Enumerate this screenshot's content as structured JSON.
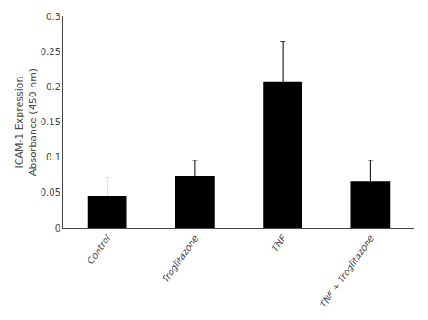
{
  "chart_data": {
    "type": "bar",
    "categories": [
      "Control",
      "Troglitazone",
      "TNF",
      "TNF + Troglitazone"
    ],
    "values": [
      0.046,
      0.074,
      0.207,
      0.066
    ],
    "errors": [
      0.025,
      0.022,
      0.057,
      0.03
    ],
    "color": "#000000",
    "ylabel": "ICAM-1 Expression\nAbsorbance (450 nm)",
    "ylim": [
      0,
      0.3
    ],
    "yticks": [
      0,
      0.05,
      0.1,
      0.15,
      0.2,
      0.25,
      0.3
    ],
    "grid": false
  }
}
